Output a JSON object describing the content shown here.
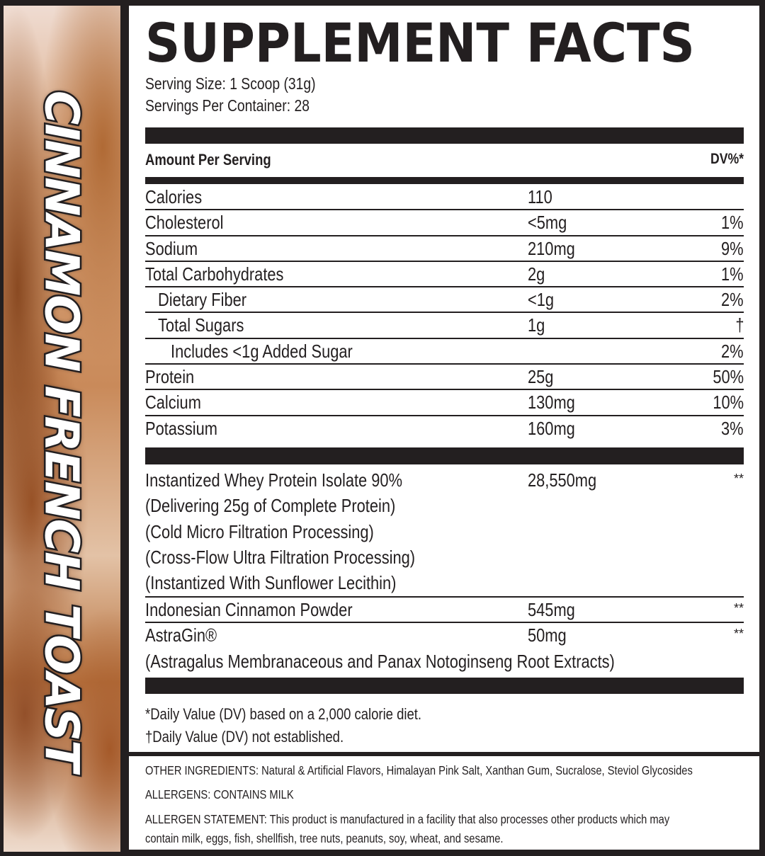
{
  "side_label": "CINNAMON FRENCH TOAST",
  "title": "SUPPLEMENT FACTS",
  "serving_size": "Serving Size: 1 Scoop (31g)",
  "servings_per_container": "Servings Per Container: 28",
  "header": {
    "amount": "Amount Per Serving",
    "dv": "DV%*"
  },
  "nutrients": [
    {
      "name": "Calories",
      "amount": "110",
      "dv": ""
    },
    {
      "name": "Cholesterol",
      "amount": "<5mg",
      "dv": "1%"
    },
    {
      "name": "Sodium",
      "amount": "210mg",
      "dv": "9%"
    },
    {
      "name": "Total Carbohydrates",
      "amount": "2g",
      "dv": "1%"
    },
    {
      "name": "Dietary Fiber",
      "amount": "<1g",
      "dv": "2%"
    },
    {
      "name": "Total Sugars",
      "amount": "1g",
      "dv": "†"
    },
    {
      "name": "Includes <1g Added Sugar",
      "amount": "",
      "dv": "2%"
    },
    {
      "name": "Protein",
      "amount": "25g",
      "dv": "50%"
    },
    {
      "name": "Calcium",
      "amount": "130mg",
      "dv": "10%"
    },
    {
      "name": "Potassium",
      "amount": "160mg",
      "dv": "3%"
    }
  ],
  "ingredients": [
    {
      "lines": [
        "Instantized Whey Protein Isolate 90%",
        "(Delivering 25g of Complete Protein)",
        "(Cold Micro Filtration Processing)",
        "(Cross-Flow Ultra Filtration Processing)",
        "(Instantized With Sunflower Lecithin)"
      ],
      "amount": "28,550mg",
      "dv": "**"
    },
    {
      "lines": [
        "Indonesian Cinnamon Powder"
      ],
      "amount": "545mg",
      "dv": "**"
    },
    {
      "lines": [
        "AstraGin®",
        "(Astragalus Membranaceous and Panax Notoginseng Root Extracts)"
      ],
      "amount": "50mg",
      "dv": "**"
    }
  ],
  "footnotes": [
    "*Daily Value (DV) based on a 2,000 calorie diet.",
    "†Daily Value (DV) not established."
  ],
  "other_ingredients": "OTHER INGREDIENTS: Natural & Artificial Flavors, Himalayan Pink Salt, Xanthan Gum, Sucralose, Steviol Glycosides",
  "allergens": "ALLERGENS: CONTAINS MILK",
  "allergen_statement_1": "ALLERGEN STATEMENT: This product is manufactured in a facility that also processes other products which may",
  "allergen_statement_2": "contain milk, eggs, fish, shellfish, tree nuts, peanuts, soy, wheat, and sesame."
}
